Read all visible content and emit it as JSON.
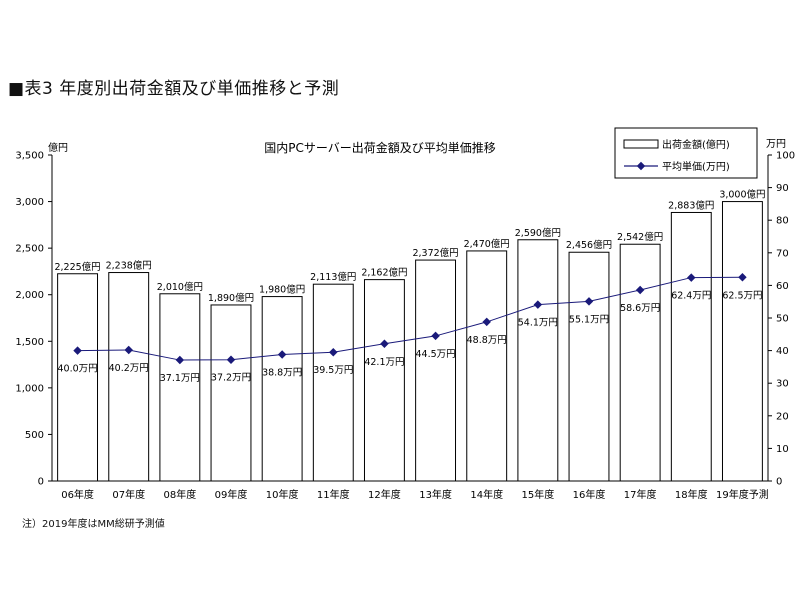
{
  "page_title": "■表3  年度別出荷金額及び単価推移と予測",
  "note": "注）2019年度はMM総研予測値",
  "chart_data": {
    "type": "bar",
    "title": "国内PCサーバー出荷金額及び平均単価推移",
    "ylabel": "億円",
    "y2label": "万円",
    "ylim": [
      0,
      3500
    ],
    "yticks": [
      "0",
      "500",
      "1,000",
      "1,500",
      "2,000",
      "2,500",
      "3,000",
      "3,500"
    ],
    "y2lim": [
      0,
      100
    ],
    "y2ticks": [
      "0",
      "10",
      "20",
      "30",
      "40",
      "50",
      "60",
      "70",
      "80",
      "90",
      "100"
    ],
    "categories": [
      "06年度",
      "07年度",
      "08年度",
      "09年度",
      "10年度",
      "11年度",
      "12年度",
      "13年度",
      "14年度",
      "15年度",
      "16年度",
      "17年度",
      "18年度",
      "19年度予測"
    ],
    "legend_position": "top-right",
    "series": [
      {
        "name": "出荷金額(億円)",
        "type": "bar",
        "axis": "left",
        "values": [
          2225,
          2238,
          2010,
          1890,
          1980,
          2113,
          2162,
          2372,
          2470,
          2590,
          2456,
          2542,
          2883,
          3000
        ],
        "labels": [
          "2,225億円",
          "2,238億円",
          "2,010億円",
          "1,890億円",
          "1,980億円",
          "2,113億円",
          "2,162億円",
          "2,372億円",
          "2,470億円",
          "2,590億円",
          "2,456億円",
          "2,542億円",
          "2,883億円",
          "3,000億円"
        ]
      },
      {
        "name": "平均単価(万円)",
        "type": "line",
        "axis": "right",
        "color": "#1a1a7a",
        "values": [
          40.0,
          40.2,
          37.1,
          37.2,
          38.8,
          39.5,
          42.1,
          44.5,
          48.8,
          54.1,
          55.1,
          58.6,
          62.4,
          62.5
        ],
        "labels": [
          "40.0万円",
          "40.2万円",
          "37.1万円",
          "37.2万円",
          "38.8万円",
          "39.5万円",
          "42.1万円",
          "44.5万円",
          "48.8万円",
          "54.1万円",
          "55.1万円",
          "58.6万円",
          "62.4万円",
          "62.5万円"
        ]
      }
    ]
  }
}
